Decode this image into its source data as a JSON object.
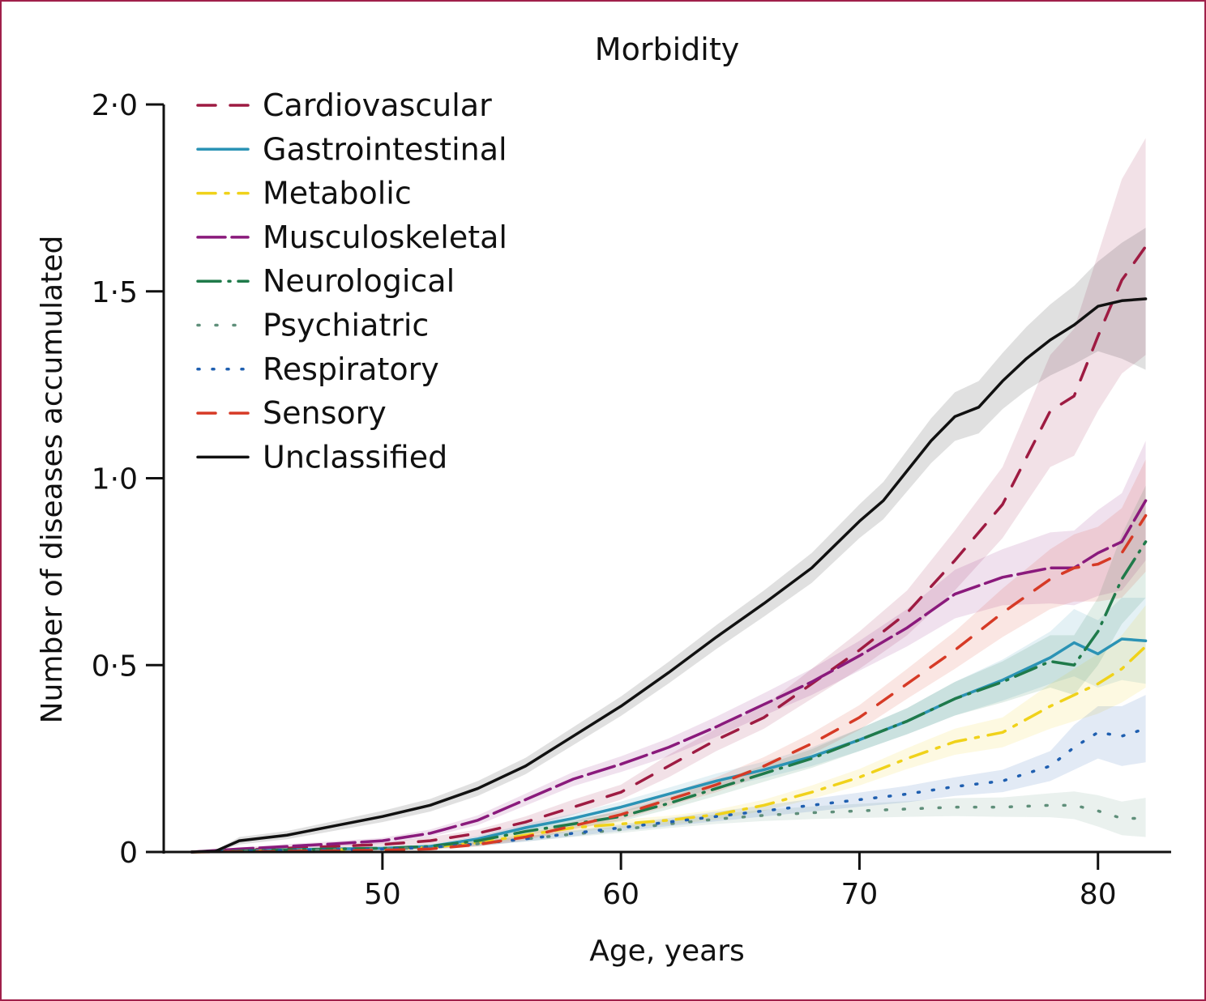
{
  "chart_data": {
    "type": "line",
    "title": "Morbidity",
    "xlabel": "Age, years",
    "ylabel": "Number of diseases accumulated",
    "xlim": [
      41,
      83
    ],
    "ylim": [
      0,
      2.0
    ],
    "x_ticks": [
      50,
      60,
      70,
      80
    ],
    "x_tick_labels": [
      "50",
      "60",
      "70",
      "80"
    ],
    "y_ticks": [
      0,
      0.5,
      1.0,
      1.5,
      2.0
    ],
    "y_tick_labels": [
      "0",
      "0·5",
      "1·0",
      "1·5",
      "2·0"
    ],
    "legend_position": "top-left",
    "series": [
      {
        "name": "Cardiovascular",
        "color": "#9e1b42",
        "dash": "22 18",
        "x": [
          42,
          44,
          46,
          48,
          50,
          52,
          54,
          56,
          58,
          60,
          62,
          64,
          66,
          68,
          70,
          72,
          74,
          76,
          78,
          79,
          80,
          81,
          82
        ],
        "y": [
          0,
          0.005,
          0.01,
          0.015,
          0.02,
          0.03,
          0.05,
          0.08,
          0.12,
          0.16,
          0.23,
          0.3,
          0.36,
          0.45,
          0.54,
          0.64,
          0.78,
          0.93,
          1.18,
          1.22,
          1.38,
          1.53,
          1.62
        ],
        "lower": [
          0,
          0,
          0.005,
          0.01,
          0.015,
          0.02,
          0.04,
          0.065,
          0.1,
          0.14,
          0.2,
          0.27,
          0.33,
          0.41,
          0.49,
          0.58,
          0.7,
          0.84,
          1.03,
          1.06,
          1.18,
          1.28,
          1.33
        ],
        "upper": [
          0,
          0.01,
          0.015,
          0.02,
          0.025,
          0.04,
          0.06,
          0.095,
          0.14,
          0.18,
          0.26,
          0.33,
          0.39,
          0.49,
          0.59,
          0.7,
          0.86,
          1.03,
          1.33,
          1.4,
          1.6,
          1.8,
          1.91
        ]
      },
      {
        "name": "Gastrointestinal",
        "color": "#2b93b5",
        "dash": "",
        "x": [
          42,
          44,
          46,
          48,
          50,
          52,
          54,
          56,
          58,
          60,
          62,
          64,
          66,
          68,
          70,
          72,
          74,
          76,
          78,
          79,
          80,
          81,
          82
        ],
        "y": [
          0,
          0.003,
          0.006,
          0.008,
          0.01,
          0.015,
          0.035,
          0.065,
          0.09,
          0.12,
          0.155,
          0.19,
          0.22,
          0.255,
          0.3,
          0.35,
          0.41,
          0.46,
          0.52,
          0.56,
          0.53,
          0.57,
          0.565
        ],
        "lower": [
          0,
          0,
          0.002,
          0.004,
          0.006,
          0.01,
          0.027,
          0.055,
          0.078,
          0.105,
          0.138,
          0.17,
          0.198,
          0.23,
          0.27,
          0.315,
          0.365,
          0.405,
          0.45,
          0.47,
          0.44,
          0.46,
          0.45
        ],
        "upper": [
          0,
          0.006,
          0.01,
          0.012,
          0.014,
          0.02,
          0.043,
          0.075,
          0.102,
          0.135,
          0.172,
          0.21,
          0.242,
          0.28,
          0.33,
          0.385,
          0.455,
          0.515,
          0.59,
          0.65,
          0.62,
          0.68,
          0.68
        ]
      },
      {
        "name": "Metabolic",
        "color": "#f0d21a",
        "dash": "22 12 4 12",
        "x": [
          42,
          44,
          46,
          48,
          50,
          52,
          54,
          56,
          58,
          60,
          62,
          64,
          66,
          68,
          70,
          72,
          74,
          76,
          78,
          79,
          80,
          81,
          82
        ],
        "y": [
          0,
          0.002,
          0.004,
          0.006,
          0.008,
          0.012,
          0.025,
          0.045,
          0.065,
          0.075,
          0.085,
          0.1,
          0.125,
          0.16,
          0.2,
          0.25,
          0.295,
          0.32,
          0.39,
          0.42,
          0.45,
          0.49,
          0.55
        ],
        "lower": [
          0,
          0,
          0.001,
          0.003,
          0.005,
          0.008,
          0.018,
          0.036,
          0.054,
          0.064,
          0.073,
          0.087,
          0.11,
          0.142,
          0.178,
          0.222,
          0.26,
          0.28,
          0.33,
          0.35,
          0.37,
          0.4,
          0.44
        ],
        "upper": [
          0,
          0.004,
          0.007,
          0.009,
          0.011,
          0.016,
          0.032,
          0.054,
          0.076,
          0.086,
          0.097,
          0.113,
          0.14,
          0.178,
          0.222,
          0.278,
          0.33,
          0.36,
          0.45,
          0.49,
          0.53,
          0.58,
          0.66
        ]
      },
      {
        "name": "Musculoskeletal",
        "color": "#8a1a7c",
        "dash": "34 8",
        "x": [
          42,
          44,
          46,
          48,
          50,
          52,
          54,
          56,
          58,
          60,
          62,
          64,
          66,
          68,
          70,
          72,
          74,
          76,
          78,
          79,
          80,
          81,
          82
        ],
        "y": [
          0,
          0.008,
          0.015,
          0.022,
          0.03,
          0.05,
          0.085,
          0.14,
          0.195,
          0.235,
          0.28,
          0.335,
          0.395,
          0.455,
          0.525,
          0.6,
          0.69,
          0.735,
          0.76,
          0.76,
          0.8,
          0.83,
          0.94
        ],
        "lower": [
          0,
          0.004,
          0.009,
          0.015,
          0.022,
          0.04,
          0.072,
          0.124,
          0.176,
          0.214,
          0.256,
          0.308,
          0.365,
          0.42,
          0.485,
          0.55,
          0.625,
          0.66,
          0.665,
          0.66,
          0.685,
          0.7,
          0.78
        ],
        "upper": [
          0,
          0.012,
          0.021,
          0.029,
          0.038,
          0.06,
          0.098,
          0.156,
          0.214,
          0.256,
          0.304,
          0.362,
          0.425,
          0.49,
          0.565,
          0.65,
          0.755,
          0.81,
          0.855,
          0.86,
          0.915,
          0.96,
          1.1
        ]
      },
      {
        "name": "Neurological",
        "color": "#1f7a4a",
        "dash": "28 10 2 10",
        "x": [
          42,
          44,
          46,
          48,
          50,
          52,
          54,
          56,
          58,
          60,
          62,
          64,
          66,
          68,
          70,
          72,
          74,
          76,
          78,
          79,
          80,
          81,
          82
        ],
        "y": [
          0,
          0.003,
          0.006,
          0.008,
          0.01,
          0.015,
          0.03,
          0.055,
          0.075,
          0.095,
          0.13,
          0.17,
          0.21,
          0.25,
          0.3,
          0.35,
          0.41,
          0.455,
          0.51,
          0.5,
          0.59,
          0.73,
          0.83
        ],
        "lower": [
          0,
          0,
          0.002,
          0.004,
          0.006,
          0.01,
          0.022,
          0.045,
          0.063,
          0.082,
          0.114,
          0.15,
          0.188,
          0.225,
          0.27,
          0.315,
          0.365,
          0.4,
          0.44,
          0.42,
          0.5,
          0.61,
          0.68
        ],
        "upper": [
          0,
          0.006,
          0.01,
          0.012,
          0.014,
          0.02,
          0.038,
          0.065,
          0.087,
          0.108,
          0.146,
          0.19,
          0.232,
          0.275,
          0.33,
          0.385,
          0.455,
          0.51,
          0.58,
          0.58,
          0.68,
          0.85,
          0.98
        ]
      },
      {
        "name": "Psychiatric",
        "color": "#5f8f7a",
        "dash": "2 20",
        "x": [
          42,
          44,
          46,
          48,
          50,
          52,
          54,
          56,
          58,
          60,
          62,
          64,
          66,
          68,
          70,
          72,
          74,
          76,
          78,
          79,
          80,
          81,
          82
        ],
        "y": [
          0,
          0.002,
          0.004,
          0.006,
          0.008,
          0.012,
          0.022,
          0.035,
          0.048,
          0.06,
          0.075,
          0.088,
          0.098,
          0.105,
          0.11,
          0.115,
          0.12,
          0.12,
          0.125,
          0.125,
          0.11,
          0.09,
          0.09
        ],
        "lower": [
          0,
          0,
          0.001,
          0.003,
          0.005,
          0.008,
          0.016,
          0.028,
          0.04,
          0.051,
          0.064,
          0.075,
          0.083,
          0.088,
          0.091,
          0.094,
          0.096,
          0.094,
          0.093,
          0.088,
          0.068,
          0.045,
          0.04
        ],
        "upper": [
          0,
          0.004,
          0.007,
          0.009,
          0.011,
          0.016,
          0.028,
          0.042,
          0.056,
          0.069,
          0.086,
          0.101,
          0.113,
          0.122,
          0.129,
          0.136,
          0.144,
          0.146,
          0.157,
          0.162,
          0.152,
          0.135,
          0.145
        ]
      },
      {
        "name": "Respiratory",
        "color": "#1f5fb0",
        "dash": "2 16",
        "x": [
          42,
          44,
          46,
          48,
          50,
          52,
          54,
          56,
          58,
          60,
          62,
          64,
          66,
          68,
          70,
          72,
          74,
          76,
          78,
          79,
          80,
          81,
          82
        ],
        "y": [
          0,
          0.002,
          0.004,
          0.006,
          0.008,
          0.012,
          0.022,
          0.035,
          0.05,
          0.065,
          0.08,
          0.095,
          0.11,
          0.125,
          0.14,
          0.155,
          0.175,
          0.19,
          0.23,
          0.28,
          0.32,
          0.31,
          0.33
        ],
        "lower": [
          0,
          0,
          0.001,
          0.003,
          0.005,
          0.008,
          0.016,
          0.028,
          0.042,
          0.056,
          0.069,
          0.082,
          0.095,
          0.108,
          0.121,
          0.133,
          0.15,
          0.16,
          0.19,
          0.22,
          0.25,
          0.23,
          0.24
        ],
        "upper": [
          0,
          0.004,
          0.007,
          0.009,
          0.011,
          0.016,
          0.028,
          0.042,
          0.058,
          0.074,
          0.091,
          0.108,
          0.125,
          0.142,
          0.159,
          0.177,
          0.2,
          0.22,
          0.27,
          0.34,
          0.39,
          0.39,
          0.42
        ]
      },
      {
        "name": "Sensory",
        "color": "#d63a26",
        "dash": "22 18",
        "x": [
          42,
          44,
          46,
          48,
          50,
          52,
          54,
          56,
          58,
          60,
          62,
          64,
          66,
          68,
          70,
          72,
          74,
          76,
          78,
          79,
          80,
          81,
          82
        ],
        "y": [
          0,
          0.001,
          0.002,
          0.003,
          0.005,
          0.008,
          0.02,
          0.04,
          0.07,
          0.1,
          0.14,
          0.18,
          0.23,
          0.29,
          0.36,
          0.45,
          0.54,
          0.64,
          0.73,
          0.76,
          0.77,
          0.8,
          0.9
        ],
        "lower": [
          0,
          0,
          0.001,
          0.002,
          0.003,
          0.005,
          0.014,
          0.032,
          0.059,
          0.086,
          0.123,
          0.16,
          0.206,
          0.262,
          0.327,
          0.41,
          0.49,
          0.575,
          0.65,
          0.67,
          0.67,
          0.68,
          0.75
        ],
        "upper": [
          0,
          0.002,
          0.003,
          0.004,
          0.007,
          0.011,
          0.026,
          0.048,
          0.081,
          0.114,
          0.157,
          0.2,
          0.254,
          0.318,
          0.393,
          0.49,
          0.59,
          0.705,
          0.81,
          0.85,
          0.87,
          0.92,
          1.05
        ]
      },
      {
        "name": "Unclassified",
        "color": "#111111",
        "dash": "",
        "x": [
          42,
          43,
          44,
          46,
          48,
          50,
          52,
          54,
          56,
          58,
          60,
          62,
          64,
          66,
          68,
          70,
          71,
          72,
          73,
          74,
          75,
          76,
          77,
          78,
          79,
          80,
          81,
          82
        ],
        "y": [
          0,
          0.002,
          0.03,
          0.045,
          0.07,
          0.095,
          0.125,
          0.17,
          0.23,
          0.31,
          0.39,
          0.48,
          0.575,
          0.665,
          0.76,
          0.885,
          0.94,
          1.02,
          1.1,
          1.165,
          1.19,
          1.26,
          1.32,
          1.37,
          1.41,
          1.46,
          1.475,
          1.48
        ],
        "lower": [
          0,
          0,
          0.02,
          0.034,
          0.057,
          0.08,
          0.108,
          0.15,
          0.208,
          0.286,
          0.364,
          0.451,
          0.543,
          0.63,
          0.72,
          0.84,
          0.89,
          0.965,
          1.04,
          1.1,
          1.12,
          1.185,
          1.235,
          1.275,
          1.305,
          1.34,
          1.32,
          1.29
        ],
        "upper": [
          0,
          0.004,
          0.04,
          0.056,
          0.083,
          0.11,
          0.142,
          0.19,
          0.252,
          0.334,
          0.416,
          0.509,
          0.607,
          0.7,
          0.8,
          0.93,
          0.99,
          1.075,
          1.16,
          1.23,
          1.26,
          1.335,
          1.405,
          1.465,
          1.515,
          1.58,
          1.63,
          1.67
        ]
      }
    ]
  }
}
